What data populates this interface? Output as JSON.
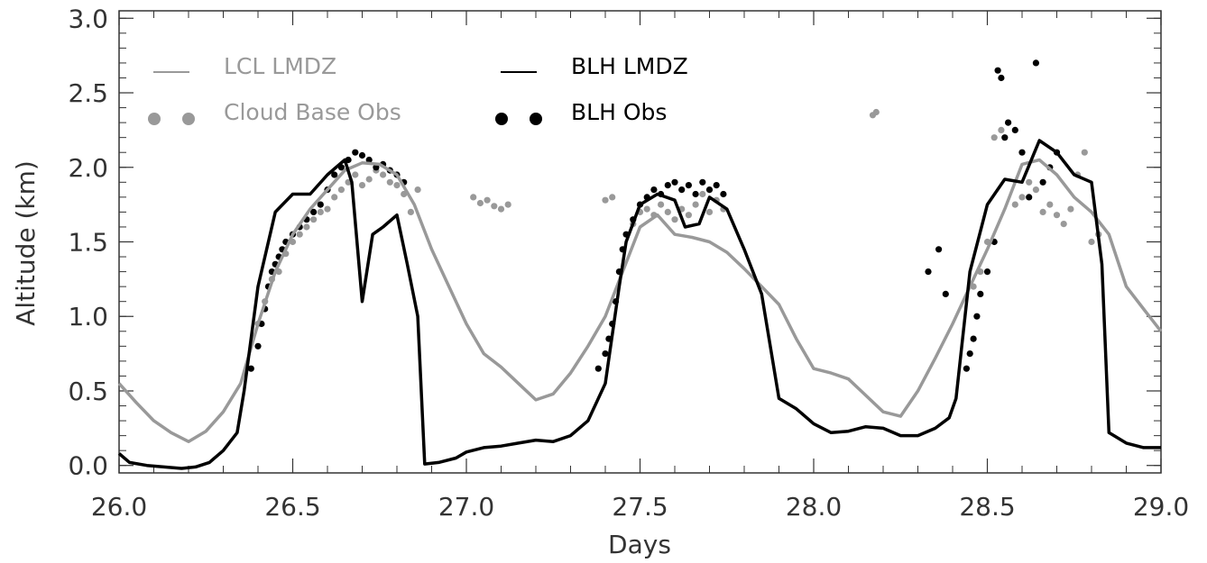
{
  "chart_data": {
    "type": "line",
    "xlabel": "Days",
    "ylabel": "Altitude (km)",
    "xlim": [
      26.0,
      29.0
    ],
    "ylim": [
      -0.05,
      3.05
    ],
    "x_ticks": [
      "26.0",
      "26.5",
      "27.0",
      "27.5",
      "28.0",
      "28.5",
      "29.0"
    ],
    "y_ticks": [
      "0.0",
      "0.5",
      "1.0",
      "1.5",
      "2.0",
      "2.5",
      "3.0"
    ],
    "grid": false,
    "legend_position": "top-left",
    "colors": {
      "lcl": "#999999",
      "blh": "#000000",
      "axis": "#333333"
    },
    "series": [
      {
        "name": "LCL LMDZ",
        "kind": "line",
        "color": "#999999",
        "x": [
          26.0,
          26.05,
          26.1,
          26.15,
          26.2,
          26.25,
          26.3,
          26.35,
          26.4,
          26.45,
          26.5,
          26.55,
          26.6,
          26.65,
          26.7,
          26.75,
          26.8,
          26.85,
          26.9,
          26.95,
          27.0,
          27.05,
          27.1,
          27.15,
          27.2,
          27.25,
          27.3,
          27.35,
          27.4,
          27.45,
          27.5,
          27.55,
          27.6,
          27.65,
          27.7,
          27.75,
          27.8,
          27.85,
          27.9,
          27.95,
          28.0,
          28.05,
          28.1,
          28.15,
          28.2,
          28.25,
          28.3,
          28.35,
          28.4,
          28.45,
          28.5,
          28.55,
          28.6,
          28.65,
          28.7,
          28.75,
          28.8,
          28.85,
          28.9,
          28.95,
          29.0
        ],
        "y": [
          0.55,
          0.42,
          0.3,
          0.22,
          0.16,
          0.23,
          0.36,
          0.55,
          0.95,
          1.3,
          1.55,
          1.72,
          1.85,
          1.98,
          2.03,
          2.02,
          1.95,
          1.75,
          1.45,
          1.2,
          0.95,
          0.75,
          0.66,
          0.55,
          0.44,
          0.48,
          0.62,
          0.8,
          1.0,
          1.3,
          1.6,
          1.68,
          1.55,
          1.53,
          1.5,
          1.43,
          1.32,
          1.2,
          1.08,
          0.85,
          0.65,
          0.62,
          0.58,
          0.47,
          0.36,
          0.33,
          0.5,
          0.72,
          0.95,
          1.2,
          1.45,
          1.72,
          2.02,
          2.05,
          1.95,
          1.8,
          1.7,
          1.55,
          1.2,
          1.05,
          0.9
        ]
      },
      {
        "name": "BLH LMDZ",
        "kind": "line",
        "color": "#000000",
        "x": [
          26.0,
          26.03,
          26.08,
          26.13,
          26.18,
          26.22,
          26.26,
          26.3,
          26.34,
          26.36,
          26.4,
          26.45,
          26.5,
          26.55,
          26.6,
          26.65,
          26.67,
          26.7,
          26.73,
          26.76,
          26.8,
          26.83,
          26.86,
          26.88,
          26.92,
          26.97,
          27.0,
          27.05,
          27.1,
          27.15,
          27.2,
          27.25,
          27.3,
          27.35,
          27.4,
          27.44,
          27.46,
          27.5,
          27.55,
          27.6,
          27.63,
          27.67,
          27.7,
          27.75,
          27.8,
          27.85,
          27.9,
          27.95,
          28.0,
          28.05,
          28.1,
          28.15,
          28.2,
          28.25,
          28.3,
          28.35,
          28.39,
          28.41,
          28.45,
          28.5,
          28.55,
          28.6,
          28.65,
          28.7,
          28.75,
          28.8,
          28.83,
          28.85,
          28.9,
          28.95,
          29.0
        ],
        "y": [
          0.08,
          0.02,
          0.0,
          -0.01,
          -0.02,
          -0.01,
          0.02,
          0.1,
          0.22,
          0.5,
          1.2,
          1.7,
          1.82,
          1.82,
          1.95,
          2.05,
          1.9,
          1.1,
          1.55,
          1.6,
          1.68,
          1.35,
          1.0,
          0.01,
          0.02,
          0.05,
          0.09,
          0.12,
          0.13,
          0.15,
          0.17,
          0.16,
          0.2,
          0.3,
          0.55,
          1.2,
          1.5,
          1.75,
          1.82,
          1.78,
          1.6,
          1.62,
          1.8,
          1.72,
          1.45,
          1.15,
          0.45,
          0.38,
          0.28,
          0.22,
          0.23,
          0.26,
          0.25,
          0.2,
          0.2,
          0.25,
          0.32,
          0.45,
          1.3,
          1.75,
          1.92,
          1.9,
          2.18,
          2.1,
          1.95,
          1.9,
          1.35,
          0.22,
          0.15,
          0.12,
          0.12
        ]
      },
      {
        "name": "Cloud Base Obs",
        "kind": "scatter",
        "color": "#999999",
        "x": [
          26.4,
          26.42,
          26.44,
          26.46,
          26.48,
          26.5,
          26.52,
          26.54,
          26.56,
          26.58,
          26.6,
          26.62,
          26.64,
          26.66,
          26.68,
          26.7,
          26.72,
          26.74,
          26.76,
          26.78,
          26.8,
          26.82,
          26.84,
          26.86,
          27.02,
          27.04,
          27.06,
          27.08,
          27.1,
          27.12,
          27.4,
          27.42,
          27.48,
          27.5,
          27.52,
          27.54,
          27.56,
          27.58,
          27.6,
          27.62,
          27.64,
          27.66,
          27.68,
          27.7,
          27.72,
          27.74,
          28.17,
          28.18,
          28.46,
          28.48,
          28.5,
          28.52,
          28.54,
          28.56,
          28.58,
          28.6,
          28.62,
          28.64,
          28.66,
          28.68,
          28.7,
          28.72,
          28.74,
          28.76,
          28.78,
          28.8,
          28.82
        ],
        "y": [
          0.95,
          1.1,
          1.25,
          1.3,
          1.42,
          1.5,
          1.55,
          1.6,
          1.65,
          1.7,
          1.72,
          1.8,
          1.85,
          1.9,
          1.95,
          1.88,
          1.92,
          1.98,
          1.95,
          1.9,
          1.88,
          1.82,
          1.7,
          1.85,
          1.8,
          1.76,
          1.78,
          1.74,
          1.72,
          1.75,
          1.78,
          1.8,
          1.62,
          1.7,
          1.72,
          1.68,
          1.75,
          1.7,
          1.65,
          1.72,
          1.68,
          1.75,
          1.82,
          1.7,
          1.78,
          1.72,
          2.35,
          2.37,
          1.2,
          1.3,
          1.5,
          2.2,
          2.25,
          2.3,
          1.75,
          1.8,
          1.9,
          1.85,
          1.7,
          1.75,
          1.68,
          1.62,
          1.72,
          1.95,
          2.1,
          1.5,
          1.55
        ]
      },
      {
        "name": "BLH Obs",
        "kind": "scatter",
        "color": "#000000",
        "x": [
          26.38,
          26.4,
          26.41,
          26.42,
          26.43,
          26.44,
          26.45,
          26.46,
          26.47,
          26.48,
          26.5,
          26.52,
          26.54,
          26.56,
          26.58,
          26.6,
          26.62,
          26.64,
          26.66,
          26.68,
          26.7,
          26.72,
          26.74,
          26.76,
          26.78,
          26.8,
          26.82,
          27.38,
          27.4,
          27.41,
          27.42,
          27.43,
          27.44,
          27.45,
          27.46,
          27.48,
          27.5,
          27.52,
          27.54,
          27.56,
          27.58,
          27.6,
          27.62,
          27.64,
          27.66,
          27.68,
          27.7,
          27.72,
          27.74,
          28.33,
          28.36,
          28.38,
          28.44,
          28.45,
          28.46,
          28.47,
          28.48,
          28.5,
          28.52,
          28.53,
          28.54,
          28.55,
          28.56,
          28.58,
          28.6,
          28.62,
          28.64,
          28.66,
          28.68,
          28.7
        ],
        "y": [
          0.65,
          0.8,
          0.95,
          1.05,
          1.2,
          1.3,
          1.35,
          1.4,
          1.45,
          1.5,
          1.55,
          1.6,
          1.65,
          1.7,
          1.75,
          1.85,
          1.95,
          2.0,
          2.05,
          2.1,
          2.08,
          2.05,
          2.0,
          2.02,
          1.98,
          1.95,
          1.9,
          0.65,
          0.75,
          0.85,
          0.95,
          1.1,
          1.3,
          1.45,
          1.55,
          1.65,
          1.75,
          1.8,
          1.85,
          1.82,
          1.88,
          1.9,
          1.85,
          1.88,
          1.82,
          1.9,
          1.85,
          1.88,
          1.82,
          1.3,
          1.45,
          1.15,
          0.65,
          0.75,
          0.85,
          1.0,
          1.15,
          1.3,
          1.5,
          2.65,
          2.6,
          2.2,
          2.3,
          2.25,
          2.1,
          1.8,
          2.7,
          1.9,
          2.0,
          2.1
        ]
      }
    ]
  }
}
